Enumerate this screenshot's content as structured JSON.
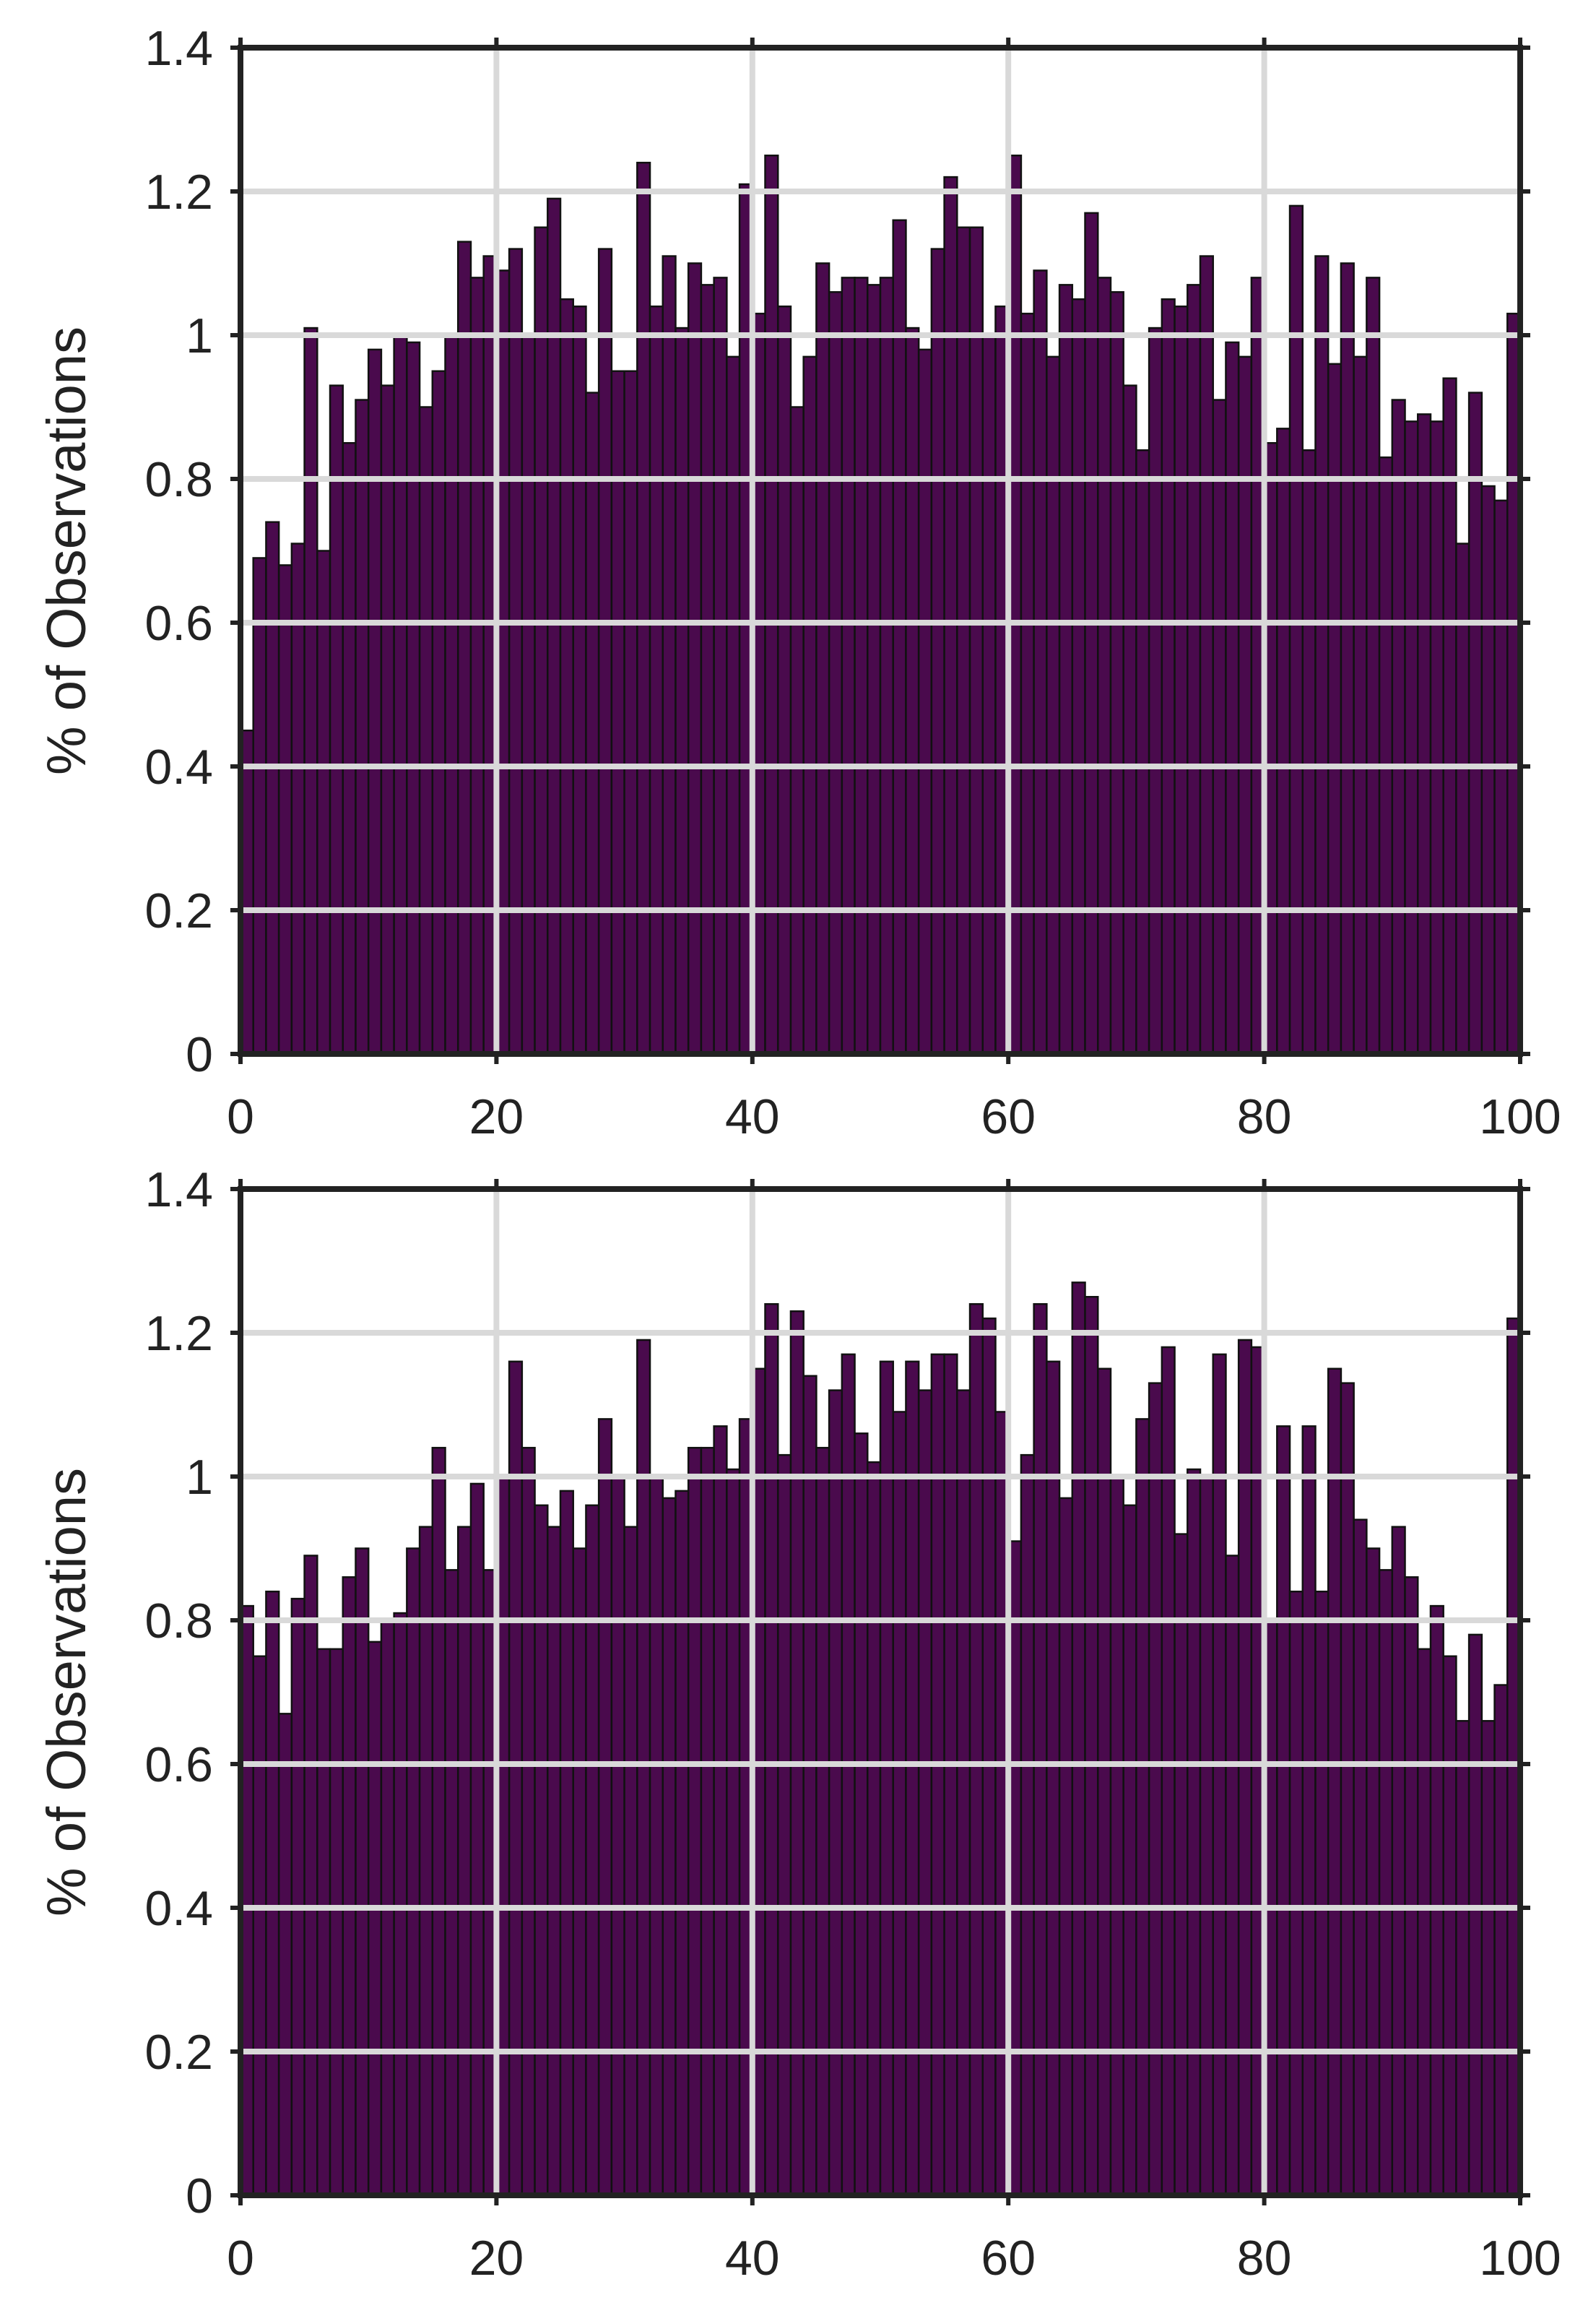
{
  "colors": {
    "bar_fill": "#4a0a4d",
    "bar_edge": "#111111",
    "grid": "#d9d9d9",
    "frame": "#222222",
    "text": "#222222"
  },
  "chart_data": [
    {
      "type": "bar",
      "title": "",
      "xlabel": "",
      "ylabel": "% of Observations",
      "xlim": [
        0,
        100
      ],
      "ylim": [
        0,
        1.4
      ],
      "xticks": [
        "0",
        "20",
        "40",
        "60",
        "80",
        "100"
      ],
      "yticks": [
        "0",
        "0.2",
        "0.4",
        "0.6",
        "0.8",
        "1",
        "1.2",
        "1.4"
      ],
      "grid": true,
      "bin_width": 1,
      "values": [
        0.45,
        0.69,
        0.74,
        0.68,
        0.71,
        1.01,
        0.7,
        0.93,
        0.85,
        0.91,
        0.98,
        0.93,
        1.0,
        0.99,
        0.9,
        0.95,
        1.0,
        1.13,
        1.08,
        1.11,
        1.09,
        1.12,
        1.0,
        1.15,
        1.19,
        1.05,
        1.04,
        0.92,
        1.12,
        0.95,
        0.95,
        1.24,
        1.04,
        1.11,
        1.01,
        1.1,
        1.07,
        1.08,
        0.97,
        1.21,
        1.03,
        1.25,
        1.04,
        0.9,
        0.97,
        1.1,
        1.06,
        1.08,
        1.08,
        1.07,
        1.08,
        1.16,
        1.01,
        0.98,
        1.12,
        1.22,
        1.15,
        1.15,
        1.0,
        1.04,
        1.25,
        1.03,
        1.09,
        0.97,
        1.07,
        1.05,
        1.17,
        1.08,
        1.06,
        0.93,
        0.84,
        1.01,
        1.05,
        1.04,
        1.07,
        1.11,
        0.91,
        0.99,
        0.97,
        1.08,
        0.85,
        0.87,
        1.18,
        0.84,
        1.11,
        0.96,
        1.1,
        0.97,
        1.08,
        0.83,
        0.91,
        0.88,
        0.89,
        0.88,
        0.94,
        0.71,
        0.92,
        0.79,
        0.77,
        1.03
      ]
    },
    {
      "type": "bar",
      "title": "",
      "xlabel": "",
      "ylabel": "% of Observations",
      "xlim": [
        0,
        100
      ],
      "ylim": [
        0,
        1.4
      ],
      "xticks": [
        "0",
        "20",
        "40",
        "60",
        "80",
        "100"
      ],
      "yticks": [
        "0",
        "0.2",
        "0.4",
        "0.6",
        "0.8",
        "1",
        "1.2",
        "1.4"
      ],
      "grid": true,
      "bin_width": 1,
      "values": [
        0.82,
        0.75,
        0.84,
        0.67,
        0.83,
        0.89,
        0.76,
        0.76,
        0.86,
        0.9,
        0.77,
        0.8,
        0.81,
        0.9,
        0.93,
        1.04,
        0.87,
        0.93,
        0.99,
        0.87,
        1.0,
        1.16,
        1.04,
        0.96,
        0.93,
        0.98,
        0.9,
        0.96,
        1.08,
        1.0,
        0.93,
        1.19,
        1.0,
        0.97,
        0.98,
        1.04,
        1.04,
        1.07,
        1.01,
        1.08,
        1.15,
        1.24,
        1.03,
        1.23,
        1.14,
        1.04,
        1.12,
        1.17,
        1.06,
        1.02,
        1.16,
        1.09,
        1.16,
        1.12,
        1.17,
        1.17,
        1.12,
        1.24,
        1.22,
        1.09,
        0.91,
        1.03,
        1.24,
        1.16,
        0.97,
        1.27,
        1.25,
        1.15,
        1.0,
        0.96,
        1.08,
        1.13,
        1.18,
        0.92,
        1.01,
        1.0,
        1.17,
        0.89,
        1.19,
        1.18,
        0.8,
        1.07,
        0.84,
        1.07,
        0.84,
        1.15,
        1.13,
        0.94,
        0.9,
        0.87,
        0.93,
        0.86,
        0.76,
        0.82,
        0.75,
        0.66,
        0.78,
        0.66,
        0.71,
        1.22
      ]
    }
  ]
}
